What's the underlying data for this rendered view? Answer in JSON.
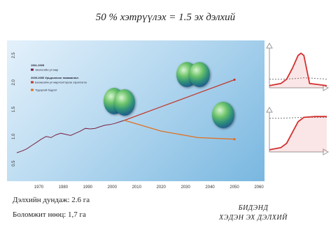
{
  "title": "50 % хэтрүүлэх = 1.5 эх дэлхий",
  "chart_data": [
    {
      "type": "line",
      "name": "main",
      "xlim": [
        1961,
        2060
      ],
      "ylim": [
        0.25,
        2.7
      ],
      "x_ticks": [
        1970,
        1980,
        1990,
        2000,
        2010,
        2020,
        2030,
        2040,
        2050,
        2060
      ],
      "y_ticks": [
        0.5,
        1.0,
        1.5,
        2.0,
        2.5
      ],
      "legend_position": "top-left",
      "legend_groups": [
        {
          "heading": "1961-2005",
          "entries": [
            "Экологийн ул мөр"
          ]
        },
        {
          "heading": "2005-2050 Урьдчилсан тааамаглал",
          "entries": [
            "Бизнесийн ул мөр/хэлтэрсэн хэрэглэгээ",
            "Тодорхой бодлот"
          ]
        }
      ],
      "series": [
        {
          "key": "historical",
          "color": "#7a2040",
          "x": [
            1961,
            1963,
            1965,
            1967,
            1969,
            1971,
            1973,
            1975,
            1977,
            1979,
            1981,
            1983,
            1985,
            1987,
            1989,
            1991,
            1993,
            1995,
            1997,
            1999,
            2001,
            2003,
            2005
          ],
          "y": [
            0.7,
            0.73,
            0.77,
            0.83,
            0.89,
            0.95,
            1.0,
            0.98,
            1.03,
            1.06,
            1.04,
            1.02,
            1.06,
            1.1,
            1.15,
            1.14,
            1.15,
            1.18,
            1.21,
            1.22,
            1.24,
            1.27,
            1.3
          ]
        },
        {
          "key": "business_as_usual",
          "color": "#c0392b",
          "x": [
            2005,
            2020,
            2035,
            2050
          ],
          "y": [
            1.3,
            1.55,
            1.8,
            2.05
          ]
        },
        {
          "key": "rapid_reduction",
          "color": "#e07020",
          "x": [
            2005,
            2020,
            2035,
            2050
          ],
          "y": [
            1.3,
            1.1,
            0.98,
            0.95
          ]
        }
      ]
    },
    {
      "type": "area",
      "name": "overshoot-curve-top",
      "xlim": [
        0,
        10
      ],
      "ylim": [
        0,
        10
      ],
      "series": [
        {
          "key": "capacity",
          "color": "#777777",
          "x": [
            0,
            2,
            4,
            5,
            6,
            8,
            10
          ],
          "y": [
            2,
            2,
            2.1,
            2.2,
            2.3,
            2.2,
            2
          ]
        },
        {
          "key": "demand",
          "color": "#d43030",
          "x": [
            0,
            2,
            3,
            4,
            5,
            5.5,
            6,
            7,
            10
          ],
          "y": [
            0.5,
            1,
            2,
            4.5,
            7.5,
            8,
            7.5,
            1,
            0.5
          ]
        }
      ]
    },
    {
      "type": "area",
      "name": "overshoot-curve-bottom",
      "xlim": [
        0,
        10
      ],
      "ylim": [
        0,
        10
      ],
      "series": [
        {
          "key": "capacity",
          "color": "#777777",
          "x": [
            0,
            2,
            4,
            6,
            8,
            10
          ],
          "y": [
            7.8,
            7.8,
            7.9,
            8.0,
            8.0,
            8.0
          ]
        },
        {
          "key": "demand",
          "color": "#d43030",
          "x": [
            0,
            2,
            3,
            4,
            5,
            6,
            8,
            10
          ],
          "y": [
            0.5,
            1,
            2,
            4.5,
            7,
            8,
            8.2,
            8.2
          ]
        }
      ]
    }
  ],
  "stats": {
    "average": "Дэлхийн дундаж: 2.6 га",
    "resource": "Боломжит нөөц: 1,7 га"
  },
  "caption": {
    "line1": "БИДЭНД",
    "line2": "ХЭДЭН ЭХ ДЭЛХИЙ"
  }
}
